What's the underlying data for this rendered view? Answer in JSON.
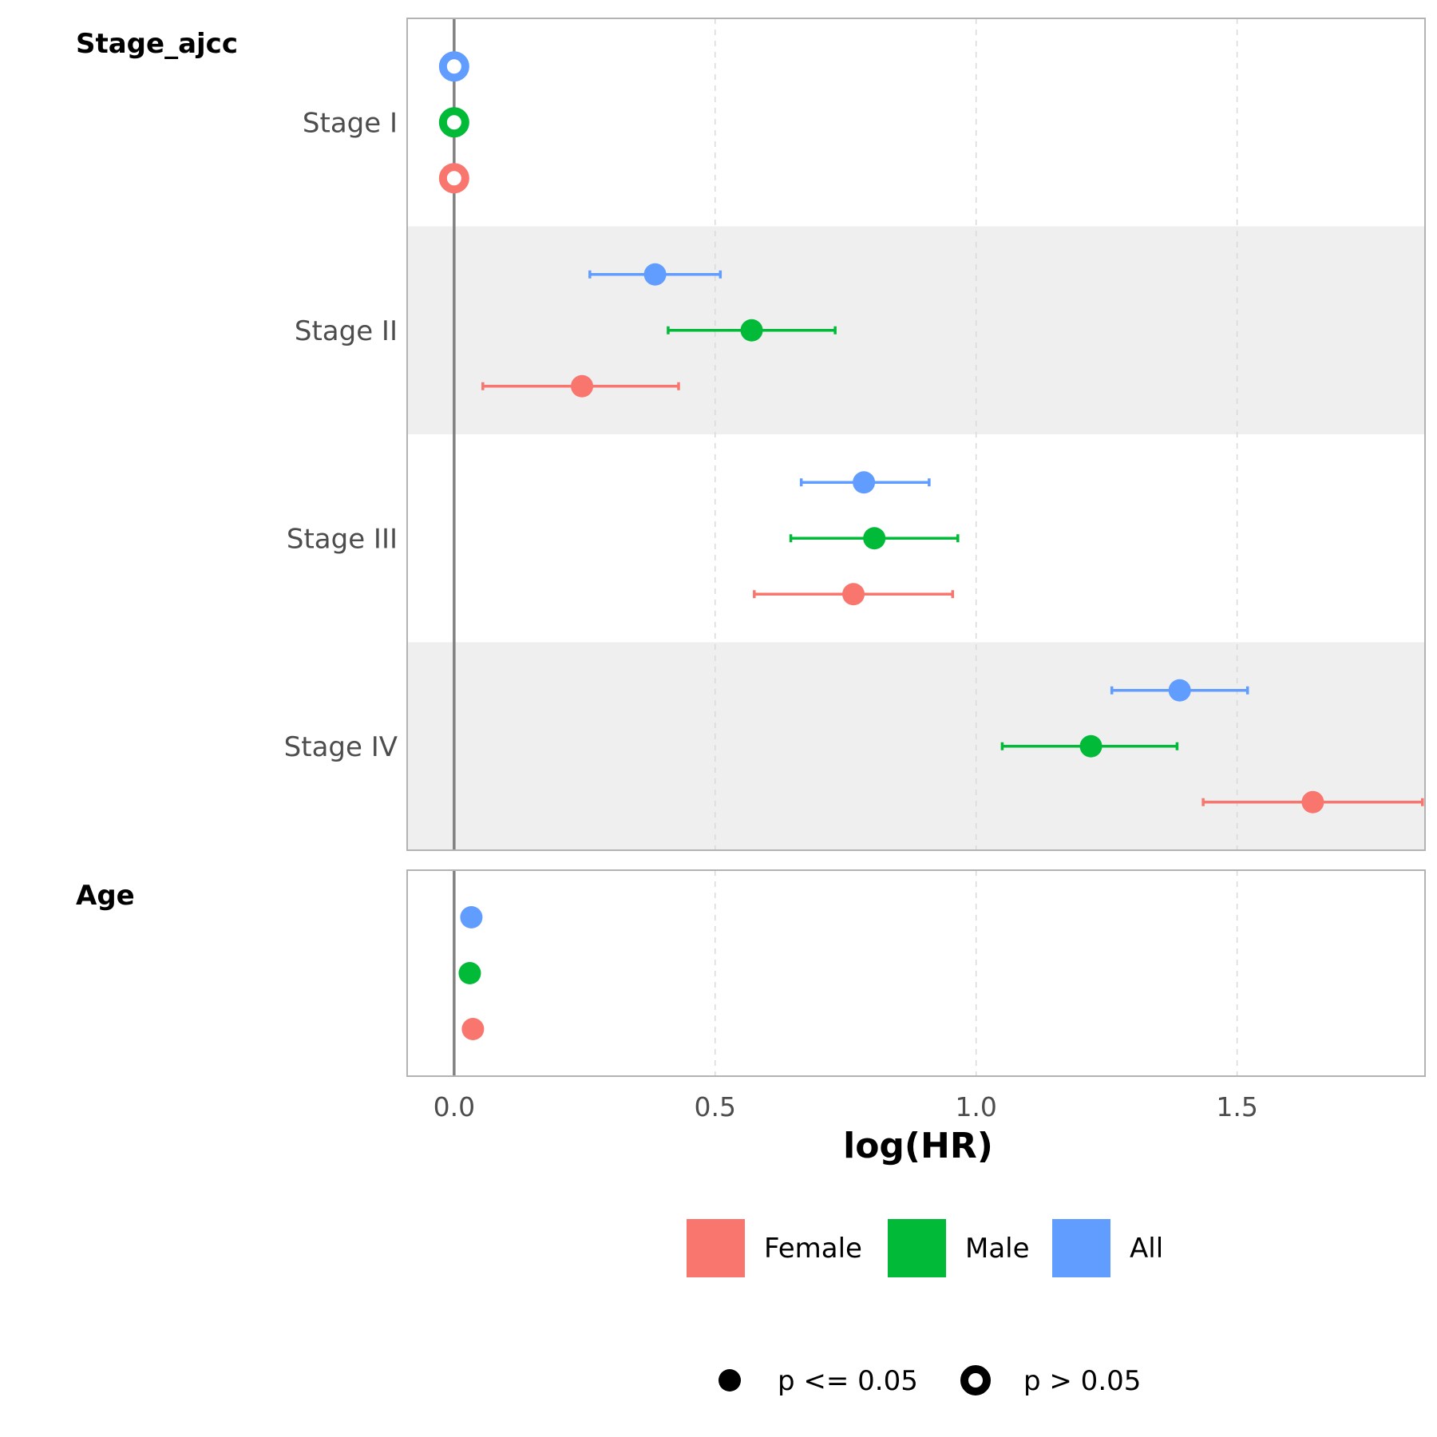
{
  "chart_data": {
    "type": "scatter",
    "xlabel": "log(HR)",
    "xlim": [
      -0.09,
      1.86
    ],
    "x_ticks": [
      "0.0",
      "0.5",
      "1.0",
      "1.5"
    ],
    "x_tick_values": [
      0,
      0.5,
      1.0,
      1.5
    ],
    "grid": "vertical dashed",
    "reference_line": 0,
    "panels": [
      {
        "title": "Stage_ajcc",
        "categories": [
          {
            "label": "Stage I",
            "shaded": false,
            "points": [
              {
                "series": "All",
                "estimate": 0.0,
                "lower": null,
                "upper": null,
                "significant": false
              },
              {
                "series": "Male",
                "estimate": 0.0,
                "lower": null,
                "upper": null,
                "significant": false
              },
              {
                "series": "Female",
                "estimate": 0.0,
                "lower": null,
                "upper": null,
                "significant": false
              }
            ]
          },
          {
            "label": "Stage II",
            "shaded": true,
            "points": [
              {
                "series": "All",
                "estimate": 0.385,
                "lower": 0.26,
                "upper": 0.51,
                "significant": true
              },
              {
                "series": "Male",
                "estimate": 0.57,
                "lower": 0.41,
                "upper": 0.73,
                "significant": true
              },
              {
                "series": "Female",
                "estimate": 0.245,
                "lower": 0.055,
                "upper": 0.43,
                "significant": true
              }
            ]
          },
          {
            "label": "Stage III",
            "shaded": false,
            "points": [
              {
                "series": "All",
                "estimate": 0.785,
                "lower": 0.665,
                "upper": 0.91,
                "significant": true
              },
              {
                "series": "Male",
                "estimate": 0.805,
                "lower": 0.645,
                "upper": 0.965,
                "significant": true
              },
              {
                "series": "Female",
                "estimate": 0.765,
                "lower": 0.575,
                "upper": 0.955,
                "significant": true
              }
            ]
          },
          {
            "label": "Stage IV",
            "shaded": true,
            "points": [
              {
                "series": "All",
                "estimate": 1.39,
                "lower": 1.26,
                "upper": 1.52,
                "significant": true
              },
              {
                "series": "Male",
                "estimate": 1.22,
                "lower": 1.05,
                "upper": 1.385,
                "significant": true
              },
              {
                "series": "Female",
                "estimate": 1.645,
                "lower": 1.435,
                "upper": 1.855,
                "significant": true
              }
            ]
          }
        ]
      },
      {
        "title": "Age",
        "categories": [
          {
            "label": "",
            "shaded": false,
            "points": [
              {
                "series": "All",
                "estimate": 0.033,
                "lower": null,
                "upper": null,
                "significant": true
              },
              {
                "series": "Male",
                "estimate": 0.03,
                "lower": null,
                "upper": null,
                "significant": true
              },
              {
                "series": "Female",
                "estimate": 0.036,
                "lower": null,
                "upper": null,
                "significant": true
              }
            ]
          }
        ]
      }
    ],
    "series": [
      {
        "name": "Female",
        "color": "#F8766D"
      },
      {
        "name": "Male",
        "color": "#00BA38"
      },
      {
        "name": "All",
        "color": "#619CFF"
      }
    ],
    "shape_legend": [
      {
        "label": "p <= 0.05",
        "shape": "filled-circle"
      },
      {
        "label": "p > 0.05",
        "shape": "open-circle"
      }
    ],
    "legend_position": "bottom"
  }
}
